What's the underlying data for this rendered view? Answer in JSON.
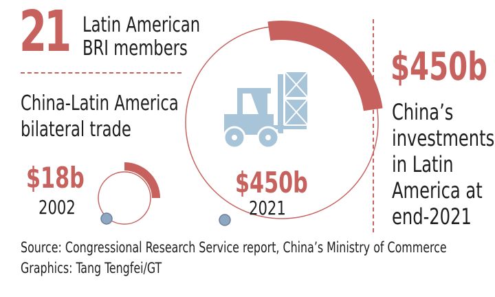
{
  "stat_members": {
    "number": "21",
    "label_line1": "Latin American",
    "label_line2": "BRI members"
  },
  "trade": {
    "title_line1": "China-Latin America",
    "title_line2": "bilateral trade",
    "items": [
      {
        "value": "$18b",
        "year": "2002"
      },
      {
        "value": "$450b",
        "year": "2021"
      }
    ]
  },
  "investment": {
    "value": "$450b",
    "lines": [
      "China’s",
      "investments",
      "in Latin",
      "America at",
      "end-2021"
    ]
  },
  "footer": {
    "source": "Source: Congressional Research Service report, China’s Ministry of Commerce",
    "credit": "Graphics: Tang Tengfei/GT"
  },
  "icons": {
    "main": "forklift-icon"
  },
  "colors": {
    "accent": "#c6615d",
    "icon": "#a7c4d8",
    "knob": "#8da6c2",
    "text": "#1d1d1d"
  }
}
